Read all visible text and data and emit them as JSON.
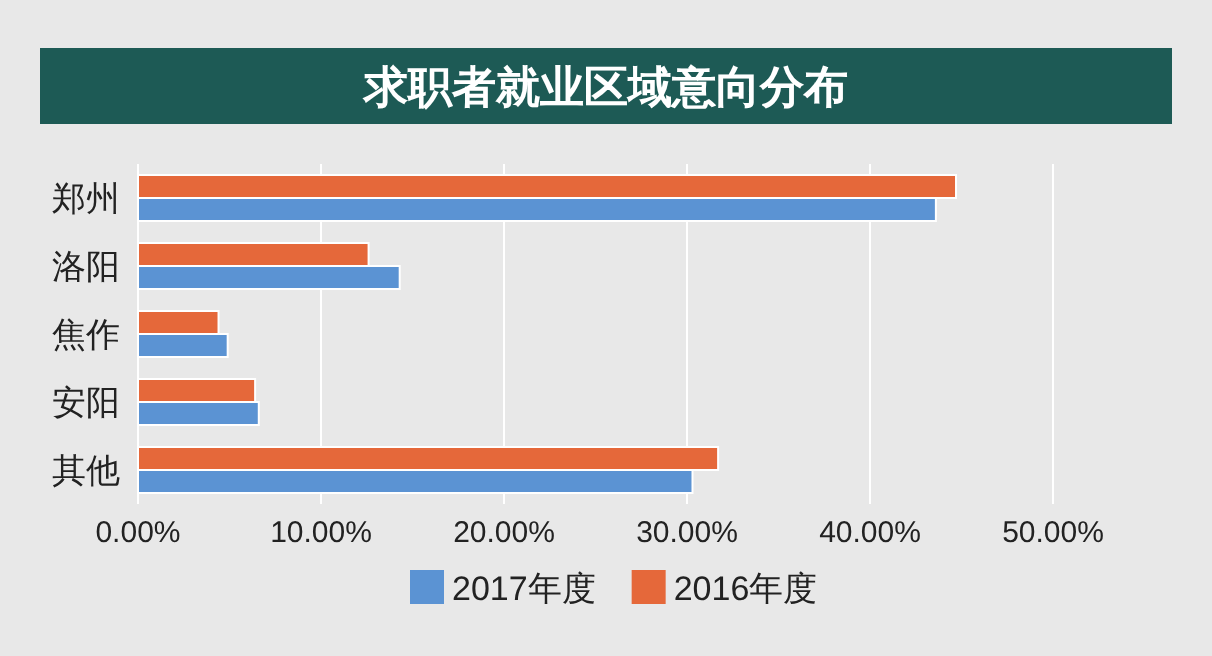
{
  "chart_data": {
    "type": "bar",
    "orientation": "horizontal",
    "title": "求职者就业区域意向分布",
    "categories": [
      "郑州",
      "洛阳",
      "焦作",
      "安阳",
      "其他"
    ],
    "series": [
      {
        "name": "2017年度",
        "color": "#5b93d3",
        "values": [
          43.6,
          14.3,
          4.9,
          6.6,
          30.3
        ]
      },
      {
        "name": "2016年度",
        "color": "#e5683a",
        "values": [
          44.7,
          12.6,
          4.4,
          6.4,
          31.7
        ]
      }
    ],
    "xlim": [
      0,
      50
    ],
    "xticks": [
      {
        "value": 0,
        "label": "0.00%"
      },
      {
        "value": 10,
        "label": "10.00%"
      },
      {
        "value": 20,
        "label": "20.00%"
      },
      {
        "value": 30,
        "label": "30.00%"
      },
      {
        "value": 40,
        "label": "40.00%"
      },
      {
        "value": 50,
        "label": "50.00%"
      }
    ],
    "grid": "x",
    "legend": "bottom"
  }
}
